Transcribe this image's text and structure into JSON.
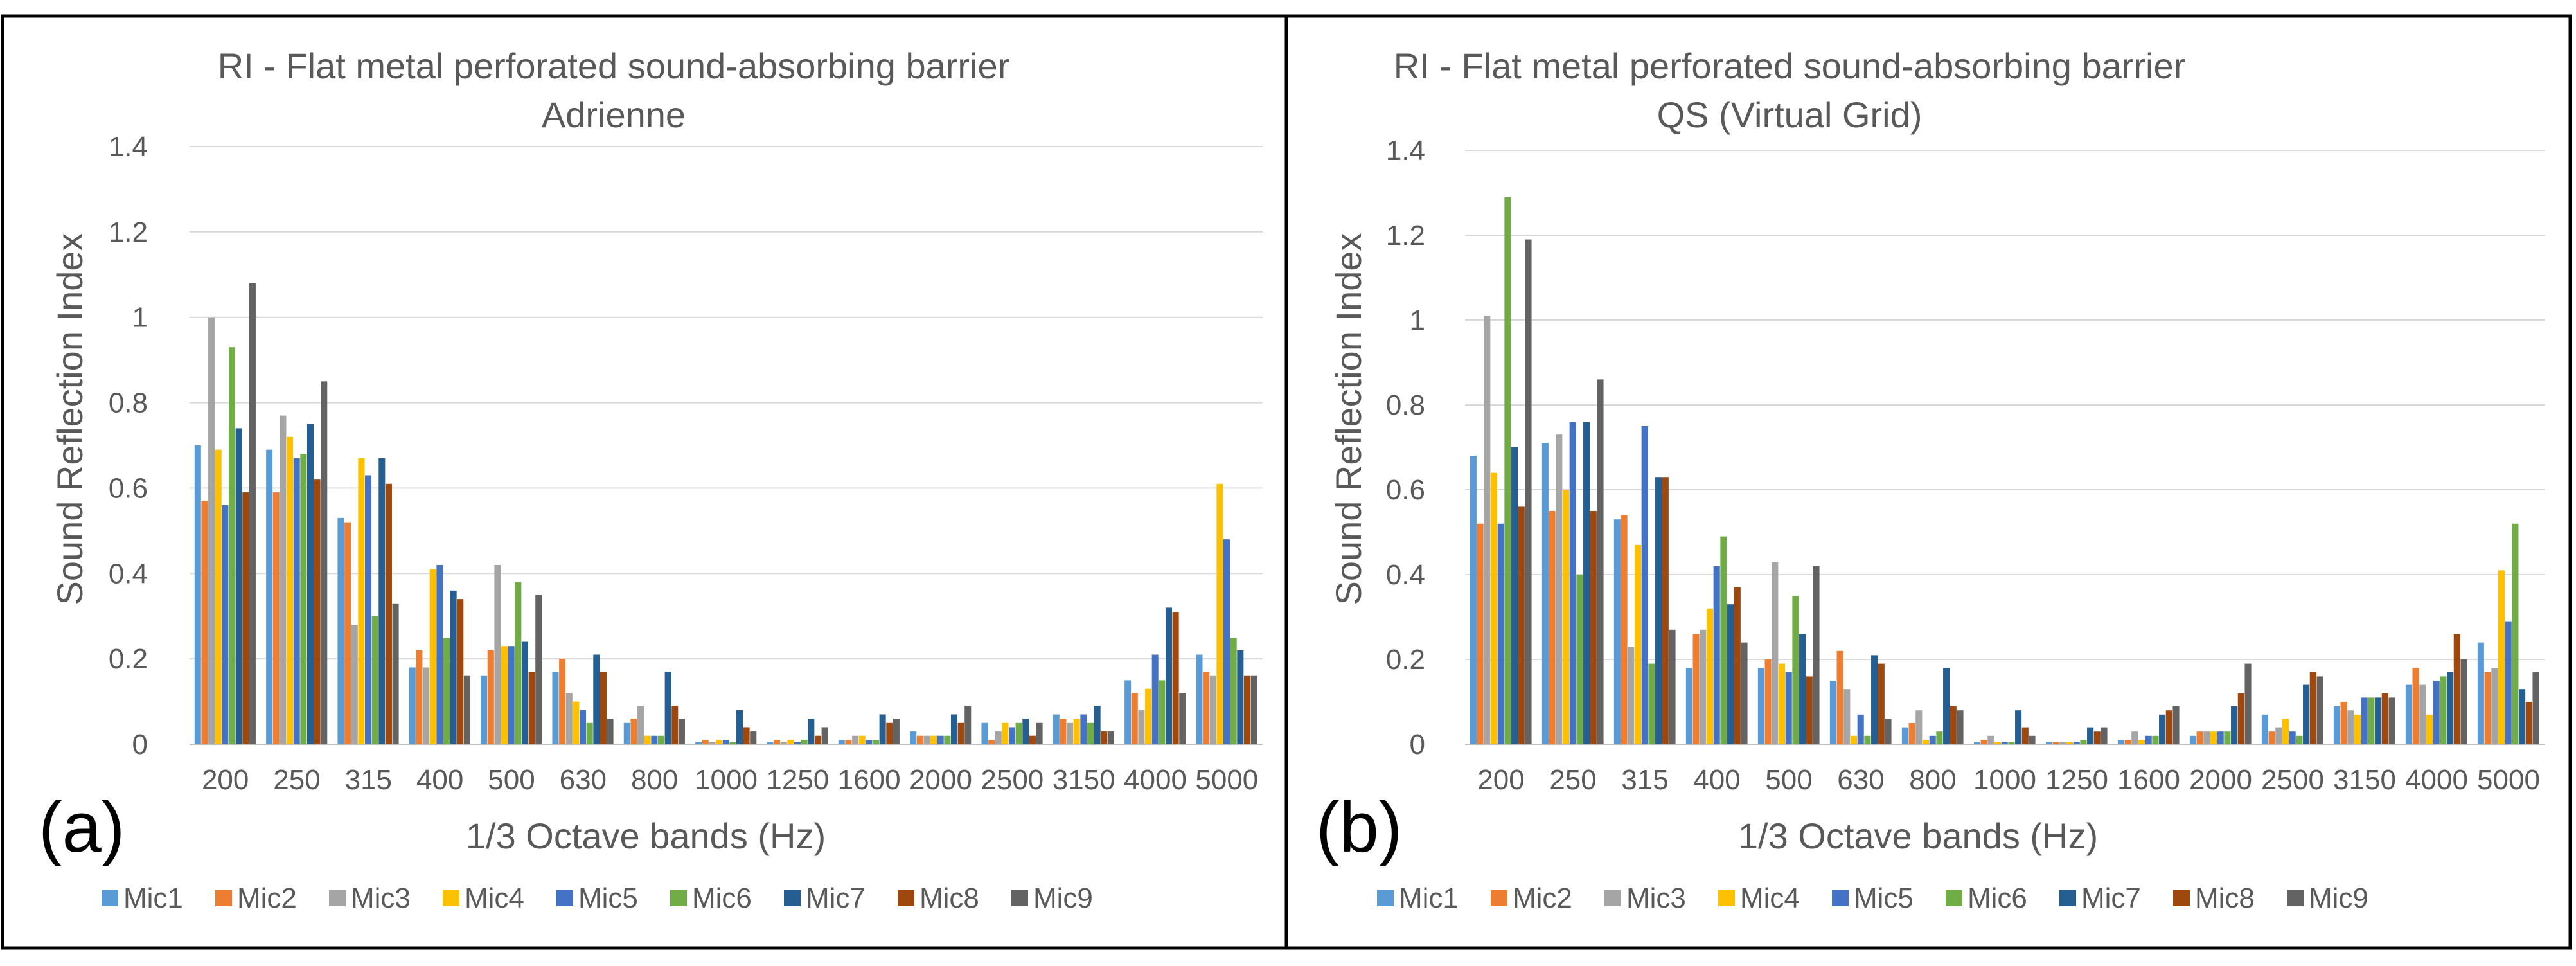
{
  "colors": {
    "Mic1": "#5B9BD5",
    "Mic2": "#ED7D31",
    "Mic3": "#A5A5A5",
    "Mic4": "#FFC000",
    "Mic5": "#4472C4",
    "Mic6": "#70AD47",
    "Mic7": "#255E91",
    "Mic8": "#9E480E",
    "Mic9": "#636363",
    "grid": "#d9d9d9",
    "text": "#595959",
    "frame": "#000000"
  },
  "chart_data": [
    {
      "type": "bar",
      "panel_label": "(a)",
      "title": "RI - Flat metal perforated sound-absorbing barrier",
      "subtitle": "Adrienne",
      "xlabel": "1/3 Octave bands (Hz)",
      "ylabel": "Sound Reflection Index",
      "ylim": [
        0,
        1.4
      ],
      "yticks": [
        "0",
        "0.2",
        "0.4",
        "0.6",
        "0.8",
        "1",
        "1.2",
        "1.4"
      ],
      "grid": true,
      "legend": "bottom",
      "categories": [
        "200",
        "250",
        "315",
        "400",
        "500",
        "630",
        "800",
        "1000",
        "1250",
        "1600",
        "2000",
        "2500",
        "3150",
        "4000",
        "5000"
      ],
      "series": [
        {
          "name": "Mic1",
          "values": [
            0.7,
            0.69,
            0.53,
            0.18,
            0.16,
            0.17,
            0.05,
            0.005,
            0.005,
            0.01,
            0.03,
            0.05,
            0.07,
            0.15,
            0.21
          ]
        },
        {
          "name": "Mic2",
          "values": [
            0.57,
            0.59,
            0.52,
            0.22,
            0.22,
            0.2,
            0.06,
            0.01,
            0.01,
            0.01,
            0.02,
            0.01,
            0.06,
            0.12,
            0.17
          ]
        },
        {
          "name": "Mic3",
          "values": [
            1.0,
            0.77,
            0.28,
            0.18,
            0.42,
            0.12,
            0.09,
            0.005,
            0.005,
            0.02,
            0.02,
            0.03,
            0.05,
            0.08,
            0.16
          ]
        },
        {
          "name": "Mic4",
          "values": [
            0.69,
            0.72,
            0.67,
            0.41,
            0.23,
            0.1,
            0.02,
            0.01,
            0.01,
            0.02,
            0.02,
            0.05,
            0.06,
            0.13,
            0.61
          ]
        },
        {
          "name": "Mic5",
          "values": [
            0.56,
            0.67,
            0.63,
            0.42,
            0.23,
            0.08,
            0.02,
            0.01,
            0.005,
            0.01,
            0.02,
            0.04,
            0.07,
            0.21,
            0.48
          ]
        },
        {
          "name": "Mic6",
          "values": [
            0.93,
            0.68,
            0.3,
            0.25,
            0.38,
            0.05,
            0.02,
            0.005,
            0.01,
            0.01,
            0.02,
            0.05,
            0.05,
            0.15,
            0.25
          ]
        },
        {
          "name": "Mic7",
          "values": [
            0.74,
            0.75,
            0.67,
            0.36,
            0.24,
            0.21,
            0.17,
            0.08,
            0.06,
            0.07,
            0.07,
            0.06,
            0.09,
            0.32,
            0.22
          ]
        },
        {
          "name": "Mic8",
          "values": [
            0.59,
            0.62,
            0.61,
            0.34,
            0.17,
            0.17,
            0.09,
            0.04,
            0.02,
            0.05,
            0.05,
            0.02,
            0.03,
            0.31,
            0.16
          ]
        },
        {
          "name": "Mic9",
          "values": [
            1.08,
            0.85,
            0.33,
            0.16,
            0.35,
            0.06,
            0.06,
            0.03,
            0.04,
            0.06,
            0.09,
            0.05,
            0.03,
            0.12,
            0.16
          ]
        }
      ]
    },
    {
      "type": "bar",
      "panel_label": "(b)",
      "title": "RI - Flat metal perforated sound-absorbing barrier",
      "subtitle": "QS (Virtual Grid)",
      "xlabel": "1/3 Octave bands (Hz)",
      "ylabel": "Sound Reflection Index",
      "ylim": [
        0,
        1.4
      ],
      "yticks": [
        "0",
        "0.2",
        "0.4",
        "0.6",
        "0.8",
        "1",
        "1.2",
        "1.4"
      ],
      "grid": true,
      "legend": "bottom",
      "categories": [
        "200",
        "250",
        "315",
        "400",
        "500",
        "630",
        "800",
        "1000",
        "1250",
        "1600",
        "2000",
        "2500",
        "3150",
        "4000",
        "5000"
      ],
      "series": [
        {
          "name": "Mic1",
          "values": [
            0.68,
            0.71,
            0.53,
            0.18,
            0.18,
            0.15,
            0.04,
            0.005,
            0.005,
            0.01,
            0.02,
            0.07,
            0.09,
            0.14,
            0.24
          ]
        },
        {
          "name": "Mic2",
          "values": [
            0.52,
            0.55,
            0.54,
            0.26,
            0.2,
            0.22,
            0.05,
            0.01,
            0.005,
            0.01,
            0.03,
            0.03,
            0.1,
            0.18,
            0.17
          ]
        },
        {
          "name": "Mic3",
          "values": [
            1.01,
            0.73,
            0.23,
            0.27,
            0.43,
            0.13,
            0.08,
            0.02,
            0.005,
            0.03,
            0.03,
            0.04,
            0.08,
            0.14,
            0.18
          ]
        },
        {
          "name": "Mic4",
          "values": [
            0.64,
            0.6,
            0.47,
            0.32,
            0.19,
            0.02,
            0.01,
            0.005,
            0.005,
            0.01,
            0.03,
            0.06,
            0.07,
            0.07,
            0.41
          ]
        },
        {
          "name": "Mic5",
          "values": [
            0.52,
            0.76,
            0.75,
            0.42,
            0.17,
            0.07,
            0.02,
            0.005,
            0.005,
            0.02,
            0.03,
            0.03,
            0.11,
            0.15,
            0.29
          ]
        },
        {
          "name": "Mic6",
          "values": [
            1.29,
            0.4,
            0.19,
            0.49,
            0.35,
            0.02,
            0.03,
            0.005,
            0.01,
            0.02,
            0.03,
            0.02,
            0.11,
            0.16,
            0.52
          ]
        },
        {
          "name": "Mic7",
          "values": [
            0.7,
            0.76,
            0.63,
            0.33,
            0.26,
            0.21,
            0.18,
            0.08,
            0.04,
            0.07,
            0.09,
            0.14,
            0.11,
            0.17,
            0.13
          ]
        },
        {
          "name": "Mic8",
          "values": [
            0.56,
            0.55,
            0.63,
            0.37,
            0.16,
            0.19,
            0.09,
            0.04,
            0.03,
            0.08,
            0.12,
            0.17,
            0.12,
            0.26,
            0.1
          ]
        },
        {
          "name": "Mic9",
          "values": [
            1.19,
            0.86,
            0.27,
            0.24,
            0.42,
            0.06,
            0.08,
            0.02,
            0.04,
            0.09,
            0.19,
            0.16,
            0.11,
            0.2,
            0.17
          ]
        }
      ]
    }
  ]
}
